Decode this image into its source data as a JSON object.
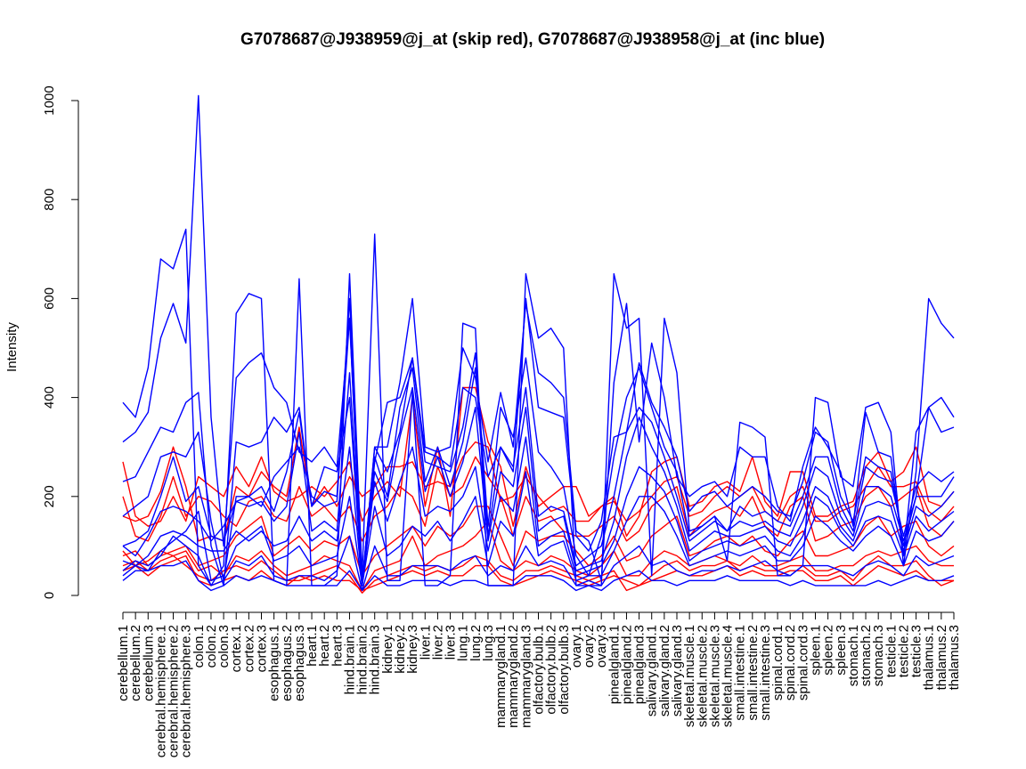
{
  "chart_data": {
    "type": "line",
    "title": "G7078687@J938959@j_at (skip red), G7078687@J938958@j_at (inc blue)",
    "xlabel": "",
    "ylabel": "Intensity",
    "ylim": [
      0,
      1000
    ],
    "yticks": [
      0,
      200,
      400,
      600,
      800,
      1000
    ],
    "grid": false,
    "legend": "none",
    "colors": {
      "skip": "#ff0000",
      "inc": "#0000ff"
    },
    "categories": [
      "cerebellum.1",
      "cerebellum.2",
      "cerebellum.3",
      "cerebral.hemisphere.1",
      "cerebral.hemisphere.2",
      "cerebral.hemisphere.3",
      "colon.1",
      "colon.2",
      "colon.3",
      "cortex.1",
      "cortex.2",
      "cortex.3",
      "esophagus.1",
      "esophagus.2",
      "esophagus.3",
      "heart.1",
      "heart.2",
      "heart.3",
      "hind.brain.1",
      "hind.brain.2",
      "hind.brain.3",
      "kidney.1",
      "kidney.2",
      "kidney.3",
      "liver.1",
      "liver.2",
      "liver.3",
      "lung.1",
      "lung.2",
      "lung.3",
      "mammarygland.1",
      "mammarygland.2",
      "mammarygland.3",
      "olfactory.bulb.1",
      "olfactory.bulb.2",
      "olfactory.bulb.3",
      "ovary.1",
      "ovary.2",
      "ovary.3",
      "pinealgland.1",
      "pinealgland.2",
      "pinealgland.3",
      "salivary.gland.1",
      "salivary.gland.2",
      "salivary.gland.3",
      "skeletal.muscle.1",
      "skeletal.muscle.2",
      "skeletal.muscle.3",
      "skeletal.muscle.4",
      "small.intestine.1",
      "small.intestine.2",
      "small.intestine.3",
      "spinal.cord.1",
      "spinal.cord.2",
      "spinal.cord.3",
      "spleen.1",
      "spleen.2",
      "spleen.3",
      "stomach.1",
      "stomach.2",
      "stomach.3",
      "testicle.1",
      "testicle.2",
      "testicle.3",
      "thalamus.1",
      "thalamus.2",
      "thalamus.3"
    ],
    "series": [
      {
        "group": "skip",
        "values": [
          270,
          160,
          140,
          150,
          200,
          150,
          240,
          220,
          200,
          260,
          220,
          280,
          210,
          190,
          200,
          220,
          200,
          230,
          270,
          150,
          200,
          230,
          200,
          400,
          180,
          300,
          160,
          420,
          420,
          310,
          260,
          140,
          260,
          180,
          200,
          220,
          220,
          160,
          180,
          200,
          120,
          160,
          250,
          270,
          280,
          180,
          190,
          220,
          230,
          210,
          280,
          190,
          160,
          250,
          250,
          160,
          160,
          180,
          190,
          260,
          290,
          230,
          250,
          300,
          190,
          180,
          210
        ]
      },
      {
        "group": "skip",
        "values": [
          160,
          150,
          160,
          210,
          300,
          220,
          110,
          120,
          110,
          220,
          200,
          250,
          220,
          200,
          340,
          180,
          220,
          180,
          240,
          200,
          220,
          260,
          260,
          270,
          220,
          230,
          220,
          280,
          310,
          300,
          190,
          200,
          240,
          200,
          170,
          180,
          150,
          150,
          180,
          190,
          150,
          170,
          200,
          230,
          240,
          160,
          170,
          200,
          220,
          200,
          220,
          170,
          150,
          200,
          220,
          150,
          150,
          170,
          180,
          220,
          260,
          220,
          220,
          230,
          170,
          150,
          180
        ]
      },
      {
        "group": "skip",
        "values": [
          200,
          120,
          110,
          160,
          240,
          160,
          200,
          190,
          160,
          140,
          190,
          200,
          160,
          150,
          220,
          160,
          180,
          150,
          180,
          110,
          160,
          180,
          220,
          200,
          140,
          260,
          200,
          220,
          280,
          240,
          200,
          120,
          200,
          150,
          160,
          130,
          120,
          120,
          140,
          160,
          110,
          130,
          180,
          200,
          220,
          120,
          150,
          170,
          180,
          160,
          200,
          140,
          120,
          180,
          200,
          110,
          120,
          140,
          150,
          200,
          220,
          180,
          200,
          220,
          140,
          120,
          150
        ]
      },
      {
        "group": "skip",
        "values": [
          80,
          90,
          60,
          80,
          90,
          100,
          60,
          70,
          80,
          120,
          140,
          160,
          80,
          100,
          120,
          90,
          110,
          100,
          120,
          40,
          80,
          100,
          120,
          140,
          100,
          140,
          120,
          140,
          180,
          180,
          120,
          60,
          130,
          110,
          120,
          120,
          90,
          60,
          80,
          120,
          70,
          80,
          120,
          140,
          160,
          80,
          90,
          110,
          120,
          100,
          120,
          90,
          80,
          110,
          130,
          80,
          80,
          90,
          100,
          140,
          160,
          120,
          140,
          150,
          100,
          80,
          100
        ]
      },
      {
        "group": "skip",
        "values": [
          60,
          70,
          50,
          70,
          80,
          90,
          50,
          60,
          40,
          80,
          70,
          90,
          60,
          40,
          50,
          60,
          80,
          70,
          60,
          10,
          50,
          60,
          70,
          120,
          60,
          80,
          90,
          100,
          120,
          150,
          70,
          50,
          70,
          60,
          80,
          70,
          50,
          40,
          60,
          90,
          40,
          40,
          70,
          90,
          80,
          60,
          70,
          80,
          70,
          60,
          80,
          60,
          60,
          70,
          80,
          50,
          50,
          60,
          60,
          80,
          90,
          80,
          90,
          100,
          70,
          60,
          60
        ]
      },
      {
        "group": "skip",
        "values": [
          90,
          60,
          70,
          90,
          80,
          60,
          40,
          30,
          50,
          60,
          50,
          70,
          50,
          30,
          30,
          40,
          50,
          60,
          40,
          5,
          30,
          40,
          50,
          60,
          50,
          60,
          50,
          60,
          80,
          70,
          40,
          30,
          50,
          50,
          60,
          50,
          40,
          30,
          40,
          50,
          10,
          20,
          40,
          60,
          70,
          50,
          60,
          60,
          70,
          50,
          60,
          50,
          50,
          60,
          60,
          40,
          40,
          50,
          30,
          60,
          80,
          60,
          60,
          70,
          40,
          20,
          30
        ]
      },
      {
        "group": "skip",
        "values": [
          50,
          60,
          40,
          60,
          70,
          80,
          30,
          20,
          30,
          40,
          30,
          50,
          30,
          20,
          40,
          30,
          40,
          30,
          30,
          10,
          20,
          30,
          40,
          50,
          40,
          50,
          40,
          40,
          60,
          60,
          30,
          20,
          30,
          40,
          50,
          40,
          30,
          20,
          30,
          40,
          30,
          20,
          30,
          40,
          50,
          40,
          40,
          50,
          60,
          40,
          50,
          40,
          40,
          50,
          50,
          30,
          30,
          40,
          20,
          40,
          60,
          50,
          40,
          50,
          30,
          30,
          30
        ]
      },
      {
        "group": "inc",
        "values": [
          390,
          360,
          460,
          680,
          660,
          740,
          60,
          20,
          60,
          570,
          610,
          600,
          30,
          20,
          640,
          20,
          20,
          40,
          650,
          40,
          730,
          30,
          30,
          410,
          20,
          20,
          40,
          550,
          540,
          20,
          20,
          20,
          650,
          520,
          540,
          500,
          20,
          20,
          20,
          650,
          540,
          560,
          40,
          560,
          450,
          130,
          140,
          160,
          70,
          350,
          340,
          320,
          40,
          40,
          60,
          400,
          390,
          240,
          220,
          380,
          390,
          330,
          60,
          250,
          600,
          550,
          520
        ]
      },
      {
        "group": "inc",
        "values": [
          310,
          330,
          370,
          520,
          590,
          510,
          1010,
          360,
          100,
          440,
          470,
          490,
          420,
          390,
          290,
          270,
          300,
          260,
          560,
          20,
          300,
          300,
          430,
          600,
          300,
          290,
          300,
          500,
          440,
          270,
          410,
          300,
          590,
          450,
          430,
          400,
          130,
          110,
          30,
          430,
          590,
          310,
          510,
          400,
          240,
          200,
          220,
          230,
          200,
          300,
          280,
          280,
          180,
          150,
          260,
          340,
          300,
          250,
          140,
          370,
          290,
          280,
          80,
          330,
          380,
          400,
          360
        ]
      },
      {
        "group": "inc",
        "values": [
          230,
          240,
          290,
          340,
          330,
          390,
          410,
          100,
          20,
          310,
          300,
          310,
          360,
          330,
          380,
          180,
          260,
          250,
          400,
          20,
          270,
          390,
          400,
          480,
          290,
          280,
          260,
          420,
          400,
          240,
          300,
          250,
          600,
          380,
          370,
          360,
          120,
          90,
          150,
          320,
          330,
          470,
          390,
          340,
          280,
          170,
          200,
          210,
          180,
          200,
          220,
          200,
          170,
          160,
          230,
          330,
          310,
          200,
          150,
          280,
          260,
          250,
          100,
          200,
          380,
          330,
          340
        ]
      },
      {
        "group": "inc",
        "values": [
          160,
          180,
          200,
          280,
          290,
          280,
          330,
          150,
          30,
          200,
          200,
          220,
          170,
          250,
          370,
          180,
          210,
          200,
          600,
          20,
          300,
          250,
          330,
          480,
          270,
          260,
          250,
          340,
          490,
          140,
          380,
          320,
          480,
          290,
          260,
          220,
          80,
          40,
          120,
          280,
          400,
          460,
          380,
          300,
          250,
          120,
          140,
          160,
          130,
          180,
          160,
          170,
          150,
          140,
          200,
          280,
          280,
          180,
          130,
          260,
          240,
          230,
          120,
          220,
          250,
          230,
          250
        ]
      },
      {
        "group": "inc",
        "values": [
          100,
          110,
          130,
          200,
          280,
          190,
          220,
          120,
          110,
          190,
          180,
          190,
          150,
          180,
          330,
          130,
          150,
          130,
          450,
          30,
          280,
          200,
          380,
          460,
          230,
          300,
          220,
          310,
          460,
          120,
          300,
          260,
          420,
          160,
          180,
          170,
          60,
          80,
          100,
          200,
          330,
          380,
          350,
          280,
          200,
          110,
          130,
          150,
          130,
          150,
          140,
          150,
          130,
          120,
          180,
          260,
          240,
          160,
          120,
          220,
          220,
          200,
          110,
          200,
          200,
          200,
          240
        ]
      },
      {
        "group": "inc",
        "values": [
          100,
          80,
          120,
          170,
          180,
          170,
          150,
          110,
          140,
          190,
          200,
          180,
          240,
          270,
          300,
          200,
          180,
          190,
          560,
          30,
          250,
          190,
          320,
          420,
          210,
          280,
          200,
          270,
          380,
          110,
          250,
          220,
          380,
          130,
          150,
          160,
          50,
          60,
          70,
          150,
          280,
          360,
          300,
          250,
          180,
          90,
          110,
          130,
          120,
          120,
          130,
          140,
          110,
          100,
          150,
          220,
          200,
          140,
          110,
          180,
          190,
          180,
          90,
          180,
          160,
          180,
          210
        ]
      },
      {
        "group": "inc",
        "values": [
          70,
          60,
          80,
          120,
          130,
          120,
          100,
          90,
          90,
          130,
          110,
          130,
          100,
          110,
          160,
          110,
          130,
          110,
          300,
          20,
          230,
          150,
          230,
          300,
          160,
          180,
          170,
          200,
          260,
          90,
          200,
          170,
          320,
          100,
          120,
          130,
          40,
          50,
          60,
          110,
          200,
          260,
          240,
          210,
          150,
          70,
          90,
          100,
          110,
          100,
          110,
          120,
          90,
          80,
          120,
          200,
          180,
          130,
          100,
          150,
          160,
          150,
          80,
          160,
          130,
          150,
          170
        ]
      },
      {
        "group": "inc",
        "values": [
          40,
          60,
          50,
          90,
          110,
          130,
          170,
          30,
          40,
          100,
          120,
          140,
          70,
          80,
          100,
          60,
          70,
          80,
          200,
          20,
          180,
          80,
          100,
          140,
          120,
          150,
          110,
          150,
          200,
          60,
          150,
          120,
          250,
          80,
          100,
          110,
          30,
          40,
          40,
          90,
          150,
          200,
          200,
          170,
          120,
          60,
          70,
          80,
          90,
          80,
          90,
          100,
          70,
          70,
          100,
          160,
          140,
          110,
          90,
          120,
          140,
          120,
          60,
          130,
          110,
          120,
          150
        ]
      },
      {
        "group": "inc",
        "values": [
          50,
          70,
          60,
          80,
          120,
          100,
          80,
          20,
          30,
          70,
          60,
          80,
          40,
          30,
          40,
          40,
          30,
          50,
          120,
          10,
          100,
          40,
          40,
          60,
          60,
          60,
          50,
          70,
          80,
          40,
          60,
          50,
          100,
          60,
          70,
          60,
          20,
          30,
          20,
          60,
          80,
          100,
          60,
          70,
          50,
          40,
          50,
          50,
          60,
          50,
          60,
          70,
          50,
          40,
          60,
          60,
          60,
          50,
          40,
          60,
          70,
          60,
          40,
          80,
          60,
          70,
          80
        ]
      },
      {
        "group": "inc",
        "values": [
          30,
          50,
          50,
          60,
          60,
          70,
          30,
          10,
          20,
          40,
          30,
          40,
          30,
          20,
          20,
          20,
          20,
          20,
          50,
          10,
          40,
          20,
          20,
          30,
          30,
          30,
          20,
          30,
          30,
          20,
          20,
          20,
          40,
          40,
          40,
          30,
          10,
          20,
          10,
          30,
          40,
          50,
          30,
          30,
          20,
          30,
          30,
          30,
          40,
          30,
          30,
          30,
          30,
          20,
          30,
          20,
          20,
          20,
          20,
          20,
          30,
          20,
          30,
          40,
          30,
          30,
          40
        ]
      }
    ]
  }
}
